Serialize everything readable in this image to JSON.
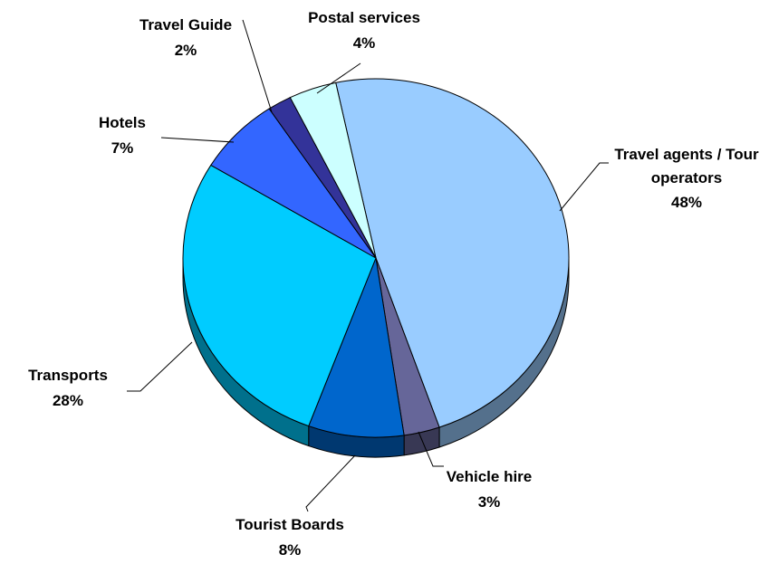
{
  "chart_data": {
    "type": "pie",
    "categories": [
      "Travel agents / Tour operators",
      "Vehicle hire",
      "Tourist Boards",
      "Transports",
      "Hotels",
      "Travel Guide",
      "Postal services"
    ],
    "values": [
      48,
      3,
      8,
      28,
      7,
      2,
      4
    ],
    "value_labels": [
      "48%",
      "3%",
      "8%",
      "28%",
      "7%",
      "2%",
      "4%"
    ],
    "colors": [
      "#99ccff",
      "#666699",
      "#0066cc",
      "#00ccff",
      "#3366ff",
      "#333399",
      "#ccffff"
    ]
  }
}
